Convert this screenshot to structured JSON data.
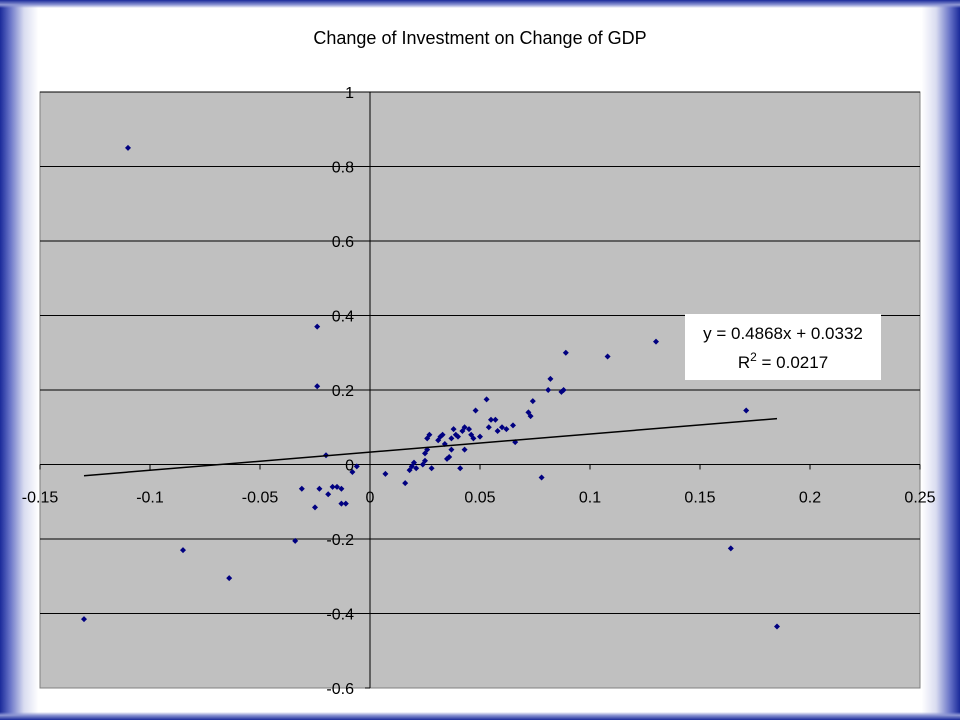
{
  "chart_data": {
    "type": "scatter",
    "title": "Change of Investment on Change of GDP",
    "xlim": [
      -0.15,
      0.25
    ],
    "ylim": [
      -0.6,
      1
    ],
    "x_ticks": [
      -0.15,
      -0.1,
      -0.05,
      0,
      0.05,
      0.1,
      0.15,
      0.2,
      0.25
    ],
    "x_tick_labels": [
      "-0.15",
      "-0.1",
      "-0.05",
      "0",
      "0.05",
      "0.1",
      "0.15",
      "0.2",
      "0.25"
    ],
    "y_ticks": [
      1,
      0.8,
      0.6,
      0.4,
      0.2,
      0,
      -0.2,
      -0.4,
      -0.6
    ],
    "y_tick_labels": [
      "1",
      "0.8",
      "0.6",
      "0.4",
      "0.2",
      "0",
      "-0.2",
      "-0.4",
      "-0.6"
    ],
    "grid": "horizontal",
    "colors": {
      "plot_background": "#c0c0c0",
      "point": "#000080",
      "trendline": "#000000"
    },
    "trendline": {
      "slope": 0.4868,
      "intercept": 0.0332,
      "x_range": [
        -0.13,
        0.185
      ],
      "equation_label": "y = 0.4868x + 0.0332",
      "r2_prefix": "R",
      "r2_sup": "2",
      "r2_suffix": " = 0.0217"
    },
    "points": [
      [
        -0.13,
        -0.415
      ],
      [
        -0.11,
        0.85
      ],
      [
        -0.085,
        -0.23
      ],
      [
        -0.064,
        -0.305
      ],
      [
        -0.034,
        -0.205
      ],
      [
        -0.031,
        -0.065
      ],
      [
        -0.024,
        0.37
      ],
      [
        -0.024,
        0.21
      ],
      [
        -0.025,
        -0.115
      ],
      [
        -0.023,
        -0.065
      ],
      [
        -0.02,
        0.025
      ],
      [
        -0.019,
        -0.08
      ],
      [
        -0.017,
        -0.06
      ],
      [
        -0.015,
        -0.06
      ],
      [
        -0.013,
        -0.065
      ],
      [
        -0.013,
        -0.105
      ],
      [
        -0.011,
        -0.105
      ],
      [
        -0.008,
        -0.02
      ],
      [
        -0.006,
        -0.005
      ],
      [
        0.007,
        -0.025
      ],
      [
        0.016,
        -0.05
      ],
      [
        0.018,
        -0.015
      ],
      [
        0.019,
        -0.005
      ],
      [
        0.02,
        0.005
      ],
      [
        0.021,
        -0.01
      ],
      [
        0.024,
        0.0
      ],
      [
        0.025,
        0.01
      ],
      [
        0.025,
        0.03
      ],
      [
        0.026,
        0.04
      ],
      [
        0.026,
        0.07
      ],
      [
        0.027,
        0.08
      ],
      [
        0.028,
        -0.01
      ],
      [
        0.031,
        0.065
      ],
      [
        0.032,
        0.075
      ],
      [
        0.033,
        0.08
      ],
      [
        0.034,
        0.055
      ],
      [
        0.035,
        0.015
      ],
      [
        0.036,
        0.02
      ],
      [
        0.037,
        0.04
      ],
      [
        0.037,
        0.07
      ],
      [
        0.038,
        0.095
      ],
      [
        0.039,
        0.08
      ],
      [
        0.04,
        0.075
      ],
      [
        0.041,
        -0.01
      ],
      [
        0.042,
        0.09
      ],
      [
        0.043,
        0.1
      ],
      [
        0.043,
        0.04
      ],
      [
        0.045,
        0.095
      ],
      [
        0.046,
        0.08
      ],
      [
        0.047,
        0.07
      ],
      [
        0.048,
        0.145
      ],
      [
        0.05,
        0.075
      ],
      [
        0.053,
        0.175
      ],
      [
        0.054,
        0.1
      ],
      [
        0.055,
        0.12
      ],
      [
        0.057,
        0.12
      ],
      [
        0.058,
        0.09
      ],
      [
        0.06,
        0.1
      ],
      [
        0.062,
        0.095
      ],
      [
        0.065,
        0.105
      ],
      [
        0.066,
        0.06
      ],
      [
        0.072,
        0.14
      ],
      [
        0.073,
        0.13
      ],
      [
        0.074,
        0.17
      ],
      [
        0.078,
        -0.035
      ],
      [
        0.081,
        0.2
      ],
      [
        0.082,
        0.23
      ],
      [
        0.087,
        0.195
      ],
      [
        0.088,
        0.2
      ],
      [
        0.089,
        0.3
      ],
      [
        0.108,
        0.29
      ],
      [
        0.13,
        0.33
      ],
      [
        0.164,
        -0.225
      ],
      [
        0.171,
        0.145
      ],
      [
        0.185,
        -0.435
      ]
    ]
  }
}
